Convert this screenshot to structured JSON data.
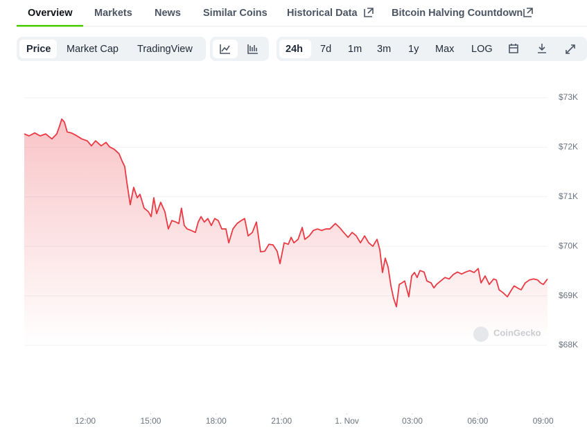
{
  "tabs": [
    "Overview",
    "Markets",
    "News",
    "Similar Coins",
    "Historical Data",
    "Bitcoin Halving Countdown"
  ],
  "view_buttons": [
    "Price",
    "Market Cap",
    "TradingView"
  ],
  "range_buttons": [
    "24h",
    "7d",
    "1m",
    "3m",
    "1y",
    "Max",
    "LOG"
  ],
  "watermark": "CoinGecko",
  "chart_data": {
    "type": "line",
    "x": [
      9.2,
      9.42,
      9.68,
      9.93,
      10.18,
      10.47,
      10.69,
      10.82,
      10.92,
      11.04,
      11.17,
      11.36,
      11.58,
      11.84,
      12.09,
      12.28,
      12.47,
      12.73,
      12.95,
      13.11,
      13.33,
      13.55,
      13.68,
      13.81,
      13.9,
      14.06,
      14.22,
      14.38,
      14.51,
      14.7,
      14.89,
      15.02,
      15.14,
      15.27,
      15.46,
      15.65,
      15.81,
      15.97,
      16.16,
      16.29,
      16.41,
      16.54,
      16.67,
      16.86,
      17.05,
      17.18,
      17.31,
      17.46,
      17.62,
      17.78,
      17.94,
      18.1,
      18.26,
      18.45,
      18.58,
      18.77,
      18.96,
      19.15,
      19.31,
      19.47,
      19.66,
      19.85,
      20.04,
      20.23,
      20.42,
      20.61,
      20.8,
      20.93,
      21.12,
      21.31,
      21.44,
      21.57,
      21.76,
      21.95,
      22.07,
      22.27,
      22.46,
      22.65,
      22.84,
      23.03,
      23.22,
      23.47,
      23.66,
      23.85,
      24.05,
      24.24,
      24.43,
      24.62,
      24.81,
      25.0,
      25.19,
      25.38,
      25.51,
      25.63,
      25.76,
      25.89,
      26.02,
      26.14,
      26.27,
      26.4,
      26.52,
      26.65,
      26.84,
      26.97,
      27.1,
      27.22,
      27.35,
      27.54,
      27.67,
      27.86,
      27.99,
      28.11,
      28.3,
      28.5,
      28.69,
      28.88,
      29.07,
      29.26,
      29.45,
      29.64,
      29.83,
      30.02,
      30.15,
      30.34,
      30.53,
      30.73,
      30.85,
      30.98,
      31.17,
      31.36,
      31.55,
      31.67,
      31.86,
      31.99,
      32.18,
      32.37,
      32.56,
      32.75,
      32.88,
      33.01,
      33.2
    ],
    "series": [
      {
        "color": "#ea3943",
        "values": [
          72270,
          72230,
          72290,
          72230,
          72270,
          72170,
          72270,
          72430,
          72570,
          72510,
          72310,
          72290,
          72240,
          72170,
          72130,
          72030,
          72130,
          72030,
          72100,
          72010,
          71960,
          71870,
          71730,
          71610,
          71310,
          70840,
          71190,
          70980,
          71050,
          70770,
          70700,
          70600,
          70980,
          70660,
          70890,
          70700,
          70350,
          70520,
          70490,
          70460,
          70770,
          70420,
          70350,
          70320,
          70280,
          70490,
          70600,
          70490,
          70560,
          70420,
          70560,
          70520,
          70350,
          70350,
          70070,
          70350,
          70460,
          70520,
          70560,
          70210,
          70280,
          70490,
          69890,
          69900,
          70040,
          70030,
          69900,
          69650,
          70070,
          70040,
          70180,
          70070,
          70140,
          70380,
          70140,
          70210,
          70320,
          70350,
          70320,
          70350,
          70350,
          70460,
          70380,
          70280,
          70180,
          70280,
          70210,
          70070,
          70210,
          70070,
          70000,
          70140,
          69930,
          69470,
          69760,
          69580,
          69200,
          68950,
          68780,
          69230,
          69260,
          69300,
          68980,
          69400,
          69470,
          69370,
          69510,
          69480,
          69300,
          69260,
          69160,
          69230,
          69300,
          69370,
          69340,
          69430,
          69480,
          69440,
          69480,
          69510,
          69470,
          69550,
          69260,
          69400,
          69230,
          69340,
          69320,
          69120,
          69060,
          68980,
          69120,
          69200,
          69150,
          69120,
          69260,
          69320,
          69340,
          69320,
          69260,
          69230,
          69340
        ]
      }
    ],
    "xlim": [
      9.2,
      33.2
    ],
    "xticks": [
      {
        "value": 12,
        "label": "12:00"
      },
      {
        "value": 15,
        "label": "15:00"
      },
      {
        "value": 18,
        "label": "18:00"
      },
      {
        "value": 21,
        "label": "21:00"
      },
      {
        "value": 24,
        "label": "1. Nov"
      },
      {
        "value": 27,
        "label": "03:00"
      },
      {
        "value": 30,
        "label": "06:00"
      },
      {
        "value": 33,
        "label": "09:00"
      }
    ],
    "ylim": [
      68000,
      73000
    ],
    "yticks": [
      {
        "value": 68000,
        "label": "$68K"
      },
      {
        "value": 69000,
        "label": "$69K"
      },
      {
        "value": 70000,
        "label": "$70K"
      },
      {
        "value": 71000,
        "label": "$71K"
      },
      {
        "value": 72000,
        "label": "$72K"
      },
      {
        "value": 73000,
        "label": "$73K"
      }
    ],
    "grid": true
  }
}
